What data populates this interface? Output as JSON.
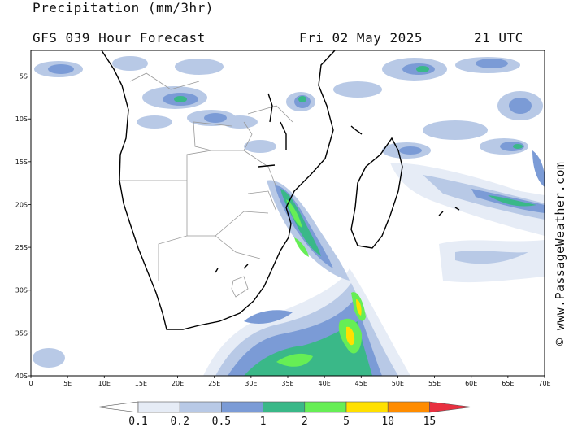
{
  "header": {
    "title": "Precipitation (mm/3hr)",
    "forecast": "GFS 039 Hour Forecast",
    "date": "Fri 02 May 2025",
    "time": "21 UTC"
  },
  "map": {
    "lon_range": [
      0,
      70
    ],
    "lat_range": [
      -40,
      -2
    ],
    "lat_ticks": [
      "5S",
      "10S",
      "15S",
      "20S",
      "25S",
      "30S",
      "35S",
      "40S"
    ],
    "lat_values": [
      -5,
      -10,
      -15,
      -20,
      -25,
      -30,
      -35,
      -40
    ],
    "lon_ticks": [
      "0",
      "5E",
      "10E",
      "15E",
      "20E",
      "25E",
      "30E",
      "35E",
      "40E",
      "45E",
      "50E",
      "55E",
      "60E",
      "65E",
      "70E"
    ],
    "lon_values": [
      0,
      5,
      10,
      15,
      20,
      25,
      30,
      35,
      40,
      45,
      50,
      55,
      60,
      65,
      70
    ]
  },
  "legend": {
    "labels": [
      "0.1",
      "0.2",
      "0.5",
      "1",
      "2",
      "5",
      "10",
      "15"
    ],
    "colors": [
      "#e6ecf6",
      "#b8c9e6",
      "#7b9bd6",
      "#3ab888",
      "#66ee55",
      "#ffe000",
      "#ff8c00",
      "#e83040"
    ]
  },
  "watermark": "© www.PassageWeather.com"
}
